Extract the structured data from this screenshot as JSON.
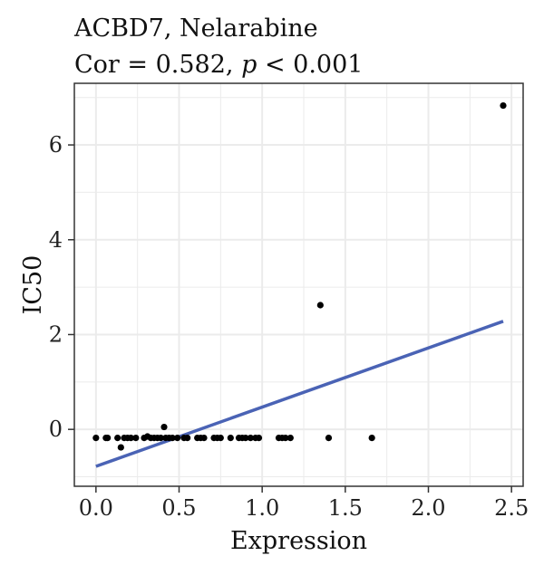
{
  "chart_data": {
    "type": "scatter",
    "title": "ACBD7, Nelarabine",
    "subtitle_prefix": "Cor = 0.582, ",
    "subtitle_p": "p",
    "subtitle_suffix": " < 0.001",
    "xlabel": "Expression",
    "ylabel": "IC50",
    "xlim": [
      -0.13,
      2.57
    ],
    "ylim": [
      -1.2,
      7.3
    ],
    "x_ticks": [
      0.0,
      0.5,
      1.0,
      1.5,
      2.0,
      2.5
    ],
    "x_tick_labels": [
      "0.0",
      "0.5",
      "1.0",
      "1.5",
      "2.0",
      "2.5"
    ],
    "y_ticks": [
      0,
      2,
      4,
      6
    ],
    "y_tick_labels": [
      "0",
      "2",
      "4",
      "6"
    ],
    "grid": true,
    "points": [
      {
        "x": 0.0,
        "y": -0.18
      },
      {
        "x": 0.06,
        "y": -0.18
      },
      {
        "x": 0.07,
        "y": -0.18
      },
      {
        "x": 0.13,
        "y": -0.18
      },
      {
        "x": 0.15,
        "y": -0.38
      },
      {
        "x": 0.17,
        "y": -0.18
      },
      {
        "x": 0.19,
        "y": -0.18
      },
      {
        "x": 0.21,
        "y": -0.18
      },
      {
        "x": 0.24,
        "y": -0.18
      },
      {
        "x": 0.29,
        "y": -0.18
      },
      {
        "x": 0.31,
        "y": -0.15
      },
      {
        "x": 0.33,
        "y": -0.18
      },
      {
        "x": 0.35,
        "y": -0.18
      },
      {
        "x": 0.37,
        "y": -0.18
      },
      {
        "x": 0.39,
        "y": -0.18
      },
      {
        "x": 0.41,
        "y": 0.05
      },
      {
        "x": 0.42,
        "y": -0.18
      },
      {
        "x": 0.44,
        "y": -0.18
      },
      {
        "x": 0.46,
        "y": -0.18
      },
      {
        "x": 0.49,
        "y": -0.18
      },
      {
        "x": 0.53,
        "y": -0.18
      },
      {
        "x": 0.55,
        "y": -0.18
      },
      {
        "x": 0.61,
        "y": -0.18
      },
      {
        "x": 0.63,
        "y": -0.18
      },
      {
        "x": 0.65,
        "y": -0.18
      },
      {
        "x": 0.71,
        "y": -0.18
      },
      {
        "x": 0.73,
        "y": -0.18
      },
      {
        "x": 0.75,
        "y": -0.18
      },
      {
        "x": 0.81,
        "y": -0.18
      },
      {
        "x": 0.86,
        "y": -0.18
      },
      {
        "x": 0.88,
        "y": -0.18
      },
      {
        "x": 0.9,
        "y": -0.18
      },
      {
        "x": 0.93,
        "y": -0.18
      },
      {
        "x": 0.96,
        "y": -0.18
      },
      {
        "x": 0.98,
        "y": -0.18
      },
      {
        "x": 1.1,
        "y": -0.18
      },
      {
        "x": 1.12,
        "y": -0.18
      },
      {
        "x": 1.14,
        "y": -0.18
      },
      {
        "x": 1.17,
        "y": -0.18
      },
      {
        "x": 1.35,
        "y": 2.62
      },
      {
        "x": 1.4,
        "y": -0.18
      },
      {
        "x": 1.66,
        "y": -0.18
      },
      {
        "x": 2.45,
        "y": 6.83
      }
    ],
    "fit_line": {
      "x": [
        0.0,
        2.45
      ],
      "y": [
        -0.78,
        2.28
      ]
    },
    "colors": {
      "points": "#000000",
      "fit_line": "#4a63b5",
      "panel_background": "#ffffff",
      "grid": "#ebebeb",
      "panel_border": "#333333"
    }
  }
}
